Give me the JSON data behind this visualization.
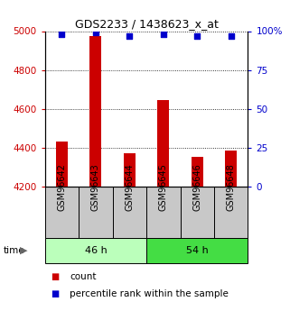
{
  "title": "GDS2233 / 1438623_x_at",
  "samples": [
    "GSM96642",
    "GSM96643",
    "GSM96644",
    "GSM96645",
    "GSM96646",
    "GSM96648"
  ],
  "bar_values": [
    4430,
    4975,
    4370,
    4645,
    4355,
    4385
  ],
  "percentile_values": [
    98,
    99,
    97,
    98,
    97,
    97
  ],
  "bar_color": "#cc0000",
  "dot_color": "#0000cc",
  "ymin": 4200,
  "ymax": 5000,
  "yticks_left": [
    4200,
    4400,
    4600,
    4800,
    5000
  ],
  "yticks_right_vals": [
    0,
    25,
    50,
    75,
    100
  ],
  "yticks_right_labels": [
    "0",
    "25",
    "50",
    "75",
    "100%"
  ],
  "group1_label": "46 h",
  "group2_label": "54 h",
  "group1_color": "#bbffbb",
  "group2_color": "#44dd44",
  "bar_width": 0.35,
  "grid_color": "#000000",
  "title_fontsize": 9,
  "tick_fontsize": 7.5,
  "label_fontsize": 7,
  "legend_fontsize": 7.5
}
